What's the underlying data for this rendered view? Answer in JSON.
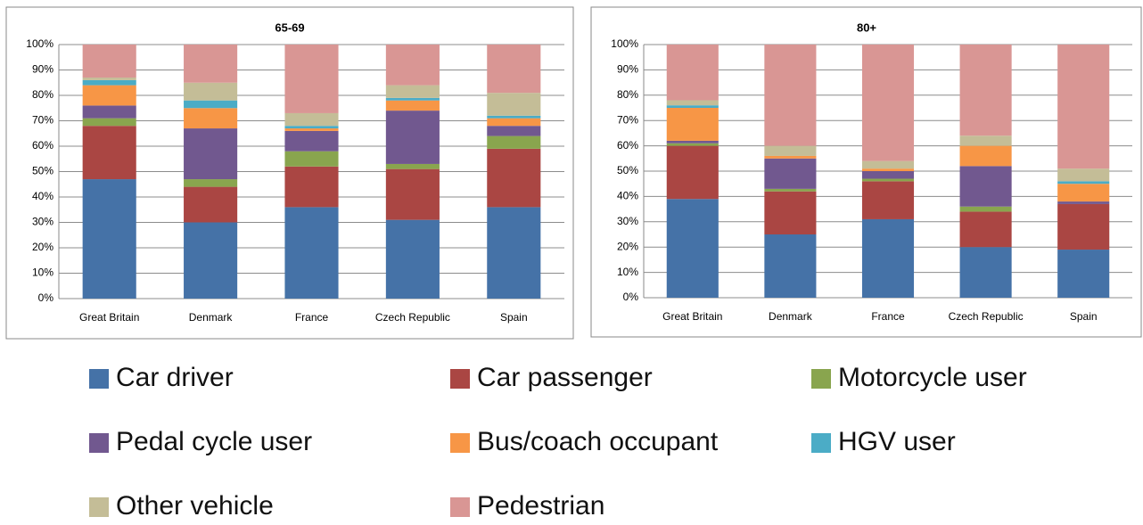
{
  "chart_data": [
    {
      "type": "bar",
      "stacked": true,
      "title": "65-69",
      "categories": [
        "Great Britain",
        "Denmark",
        "France",
        "Czech Republic",
        "Spain"
      ],
      "ylim": [
        0,
        100
      ],
      "yticks": [
        {
          "value": 0,
          "label": "0%"
        },
        {
          "value": 10,
          "label": "10%"
        },
        {
          "value": 20,
          "label": "20%"
        },
        {
          "value": 30,
          "label": "30%"
        },
        {
          "value": 40,
          "label": "40%"
        },
        {
          "value": 50,
          "label": "50%"
        },
        {
          "value": 60,
          "label": "60%"
        },
        {
          "value": 70,
          "label": "70%"
        },
        {
          "value": 80,
          "label": "80%"
        },
        {
          "value": 90,
          "label": "90%"
        },
        {
          "value": 100,
          "label": "100%"
        }
      ],
      "grid": true,
      "series": [
        {
          "name": "Car driver",
          "color": "#4572a7",
          "values": [
            47,
            30,
            36,
            31,
            36
          ]
        },
        {
          "name": "Car passenger",
          "color": "#aa4643",
          "values": [
            21,
            14,
            16,
            20,
            23
          ]
        },
        {
          "name": "Motorcycle user",
          "color": "#89a54e",
          "values": [
            3,
            3,
            6,
            2,
            5
          ]
        },
        {
          "name": "Pedal cycle user",
          "color": "#71588f",
          "values": [
            5,
            20,
            8,
            21,
            4
          ]
        },
        {
          "name": "Bus/coach occupant",
          "color": "#f79646",
          "values": [
            8,
            8,
            1,
            4,
            3
          ]
        },
        {
          "name": "HGV user",
          "color": "#4bacc6",
          "values": [
            2,
            3,
            1,
            1,
            1
          ]
        },
        {
          "name": "Other vehicle",
          "color": "#c4bd97",
          "values": [
            1,
            7,
            5,
            5,
            9
          ]
        },
        {
          "name": "Pedestrian",
          "color": "#d99694",
          "values": [
            13,
            15,
            27,
            16,
            19
          ]
        }
      ]
    },
    {
      "type": "bar",
      "stacked": true,
      "title": "80+",
      "categories": [
        "Great Britain",
        "Denmark",
        "France",
        "Czech Republic",
        "Spain"
      ],
      "ylim": [
        0,
        100
      ],
      "yticks": [
        {
          "value": 0,
          "label": "0%"
        },
        {
          "value": 10,
          "label": "10%"
        },
        {
          "value": 20,
          "label": "20%"
        },
        {
          "value": 30,
          "label": "30%"
        },
        {
          "value": 40,
          "label": "40%"
        },
        {
          "value": 50,
          "label": "50%"
        },
        {
          "value": 60,
          "label": "60%"
        },
        {
          "value": 70,
          "label": "70%"
        },
        {
          "value": 80,
          "label": "80%"
        },
        {
          "value": 90,
          "label": "90%"
        },
        {
          "value": 100,
          "label": "100%"
        }
      ],
      "grid": true,
      "series": [
        {
          "name": "Car driver",
          "color": "#4572a7",
          "values": [
            39,
            25,
            31,
            20,
            19
          ]
        },
        {
          "name": "Car passenger",
          "color": "#aa4643",
          "values": [
            21,
            17,
            15,
            14,
            18
          ]
        },
        {
          "name": "Motorcycle user",
          "color": "#89a54e",
          "values": [
            1,
            1,
            1,
            2,
            0
          ]
        },
        {
          "name": "Pedal cycle user",
          "color": "#71588f",
          "values": [
            1,
            12,
            3,
            16,
            1
          ]
        },
        {
          "name": "Bus/coach occupant",
          "color": "#f79646",
          "values": [
            13,
            1,
            1,
            8,
            7
          ]
        },
        {
          "name": "HGV user",
          "color": "#4bacc6",
          "values": [
            1,
            0,
            0,
            0,
            1
          ]
        },
        {
          "name": "Other vehicle",
          "color": "#c4bd97",
          "values": [
            2,
            4,
            3,
            4,
            5
          ]
        },
        {
          "name": "Pedestrian",
          "color": "#d99694",
          "values": [
            22,
            40,
            46,
            36,
            49
          ]
        }
      ]
    }
  ]
}
